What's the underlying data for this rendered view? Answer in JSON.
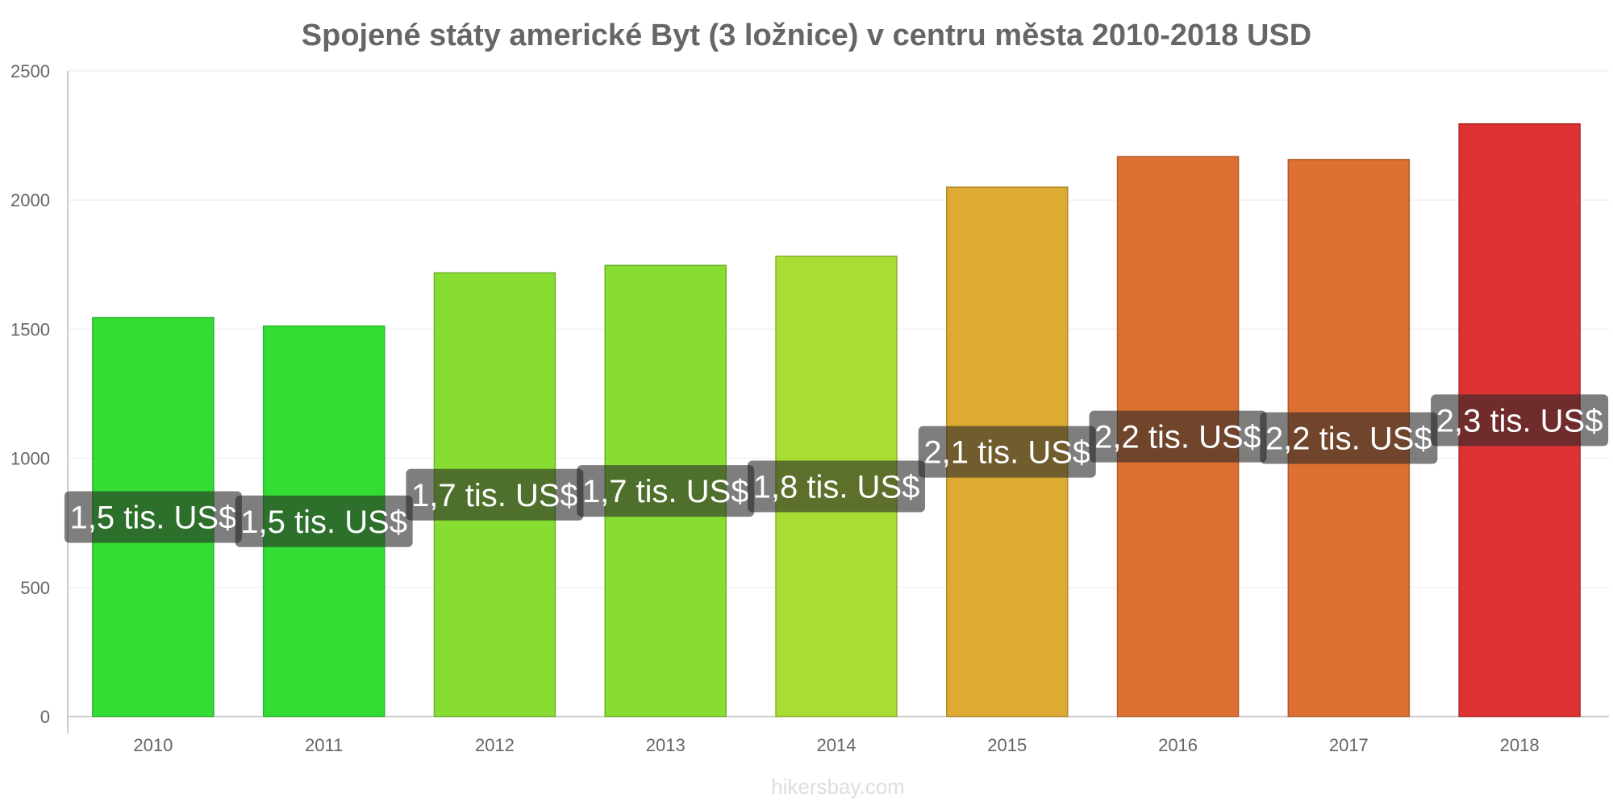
{
  "chart_data": {
    "type": "bar",
    "title": "Spojené státy americké Byt (3 ložnice) v centru města 2010-2018 USD",
    "categories": [
      "2010",
      "2011",
      "2012",
      "2013",
      "2014",
      "2015",
      "2016",
      "2017",
      "2018"
    ],
    "values": [
      1545,
      1512,
      1718,
      1747,
      1782,
      2050,
      2168,
      2157,
      2295
    ],
    "data_labels": [
      "1,5 tis. US$",
      "1,5 tis. US$",
      "1,7 tis. US$",
      "1,7 tis. US$",
      "1,8 tis. US$",
      "2,1 tis. US$",
      "2,2 tis. US$",
      "2,2 tis. US$",
      "2,3 tis. US$"
    ],
    "colors": [
      "#33dd33",
      "#33dd33",
      "#88dd33",
      "#88dd33",
      "#aadd33",
      "#ddaa33",
      "#dd7033",
      "#dd7033",
      "#dd3333"
    ],
    "y_ticks": [
      0,
      500,
      1000,
      1500,
      2000,
      2500
    ],
    "ylim": [
      0,
      2500
    ],
    "xlabel": "",
    "ylabel": "",
    "grid": true,
    "legend": "none"
  },
  "watermark": "hikersbay.com"
}
